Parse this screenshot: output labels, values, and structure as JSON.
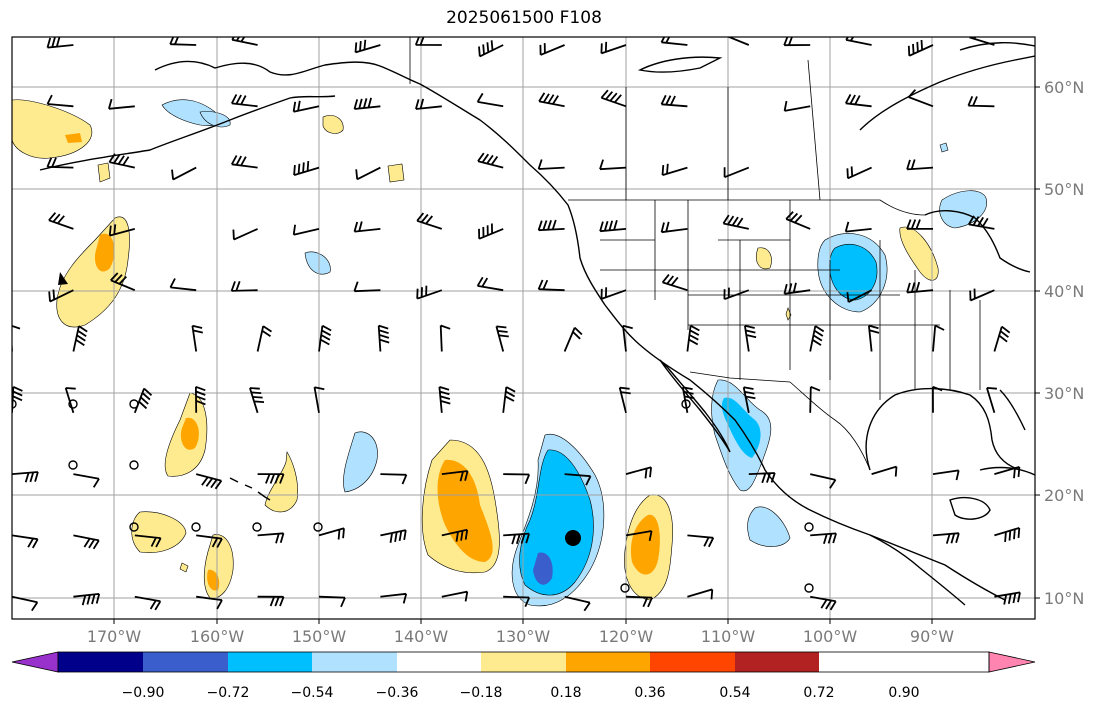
{
  "title": "2025061500 F108",
  "map": {
    "lat_labels": [
      "60°N",
      "50°N",
      "40°N",
      "30°N",
      "20°N",
      "10°N"
    ],
    "lon_labels": [
      "170°W",
      "160°W",
      "150°W",
      "140°W",
      "130°W",
      "120°W",
      "110°W",
      "100°W",
      "90°W"
    ],
    "gridlines": true,
    "colors": {
      "grid": "#a0a0a0",
      "coast": "#000000",
      "label": "#7a7a7a"
    }
  },
  "colorbar": {
    "extend": "both",
    "colors": [
      "#9932cc",
      "#00008b",
      "#3a5fcd",
      "#00bfff",
      "#b0e2ff",
      "#ffffff",
      "#ffeb8f",
      "#ffa500",
      "#ff4500",
      "#b22222",
      "#ff85b0"
    ],
    "tick_labels": [
      "−0.90",
      "−0.72",
      "−0.54",
      "−0.36",
      "−0.18",
      "0.18",
      "0.36",
      "0.54",
      "0.72",
      "0.90"
    ]
  }
}
